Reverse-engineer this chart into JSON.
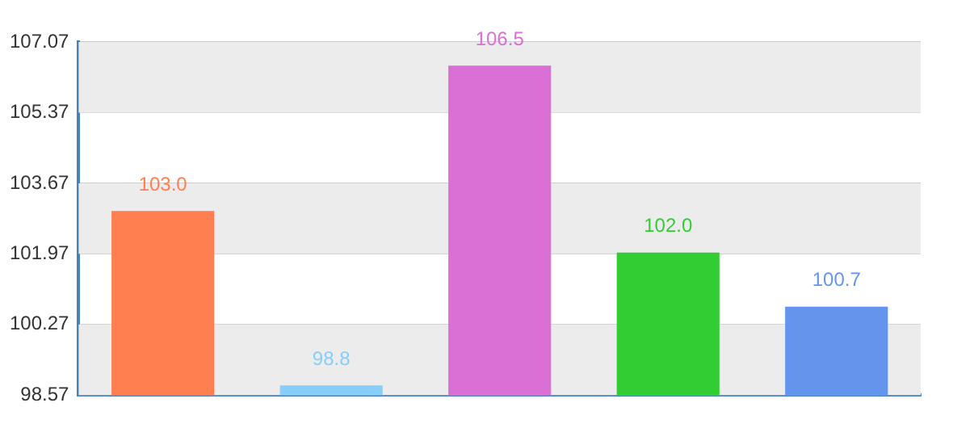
{
  "chart_data": {
    "type": "bar",
    "categories": [
      null,
      null,
      null,
      null,
      null
    ],
    "values": [
      103.0,
      98.8,
      106.5,
      102.0,
      100.7
    ],
    "colors": [
      "#ff7f50",
      "#87cefa",
      "#da70d6",
      "#32cd32",
      "#6495ed"
    ],
    "value_labels": [
      "103.0",
      "98.8",
      "106.5",
      "102.0",
      "100.7"
    ],
    "ylim": [
      98.57,
      107.07
    ],
    "yticks": [
      98.57,
      100.27,
      101.97,
      103.67,
      105.37,
      107.07
    ],
    "grid": "y",
    "legend": false
  }
}
